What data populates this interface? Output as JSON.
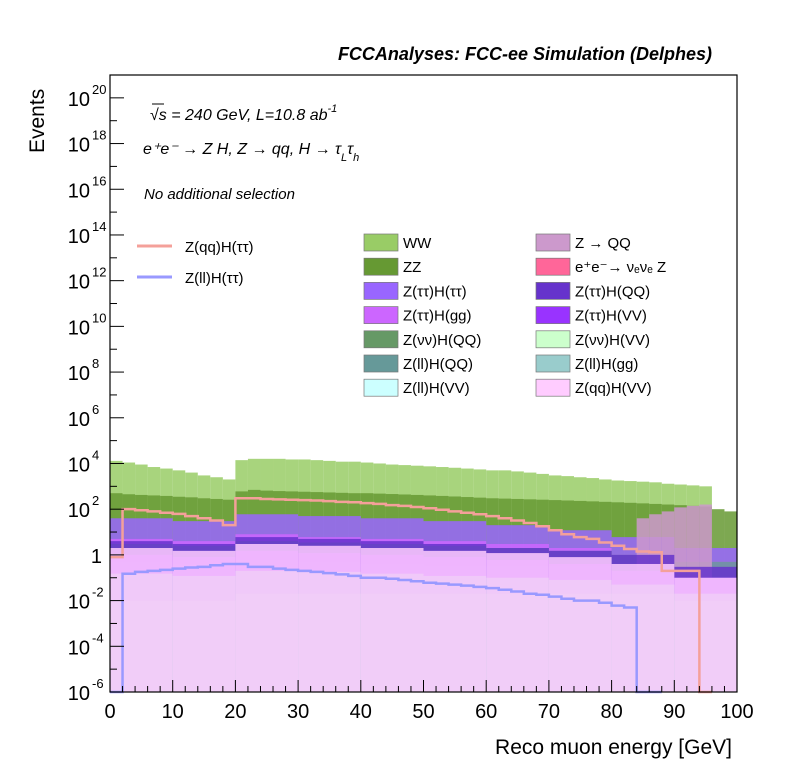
{
  "chart_data": {
    "type": "area",
    "title": "FCCAnalyses: FCC-ee Simulation (Delphes)",
    "xlabel": "Reco muon energy [GeV]",
    "ylabel": "Events",
    "xlim": [
      0,
      100
    ],
    "ylim": [
      1e-06,
      1e+21
    ],
    "yscale": "log",
    "grid": false,
    "legend_position": "top",
    "annotations": {
      "sqrt_s": "√s = 240 GeV, L=10.8 ab",
      "lumi_exp": "-1",
      "process": "e⁺e⁻ → Z H, Z → qq, H → τ",
      "process_sub1": "L",
      "process_tau": "τ",
      "process_sub2": "h",
      "selection": "No additional selection"
    },
    "x_ticks": [
      0,
      10,
      20,
      30,
      40,
      50,
      60,
      70,
      80,
      90,
      100
    ],
    "y_ticks": [
      {
        "value": 1e+20,
        "base": "10",
        "exp": "20"
      },
      {
        "value": 1e+18,
        "base": "10",
        "exp": "18"
      },
      {
        "value": 1e+16,
        "base": "10",
        "exp": "16"
      },
      {
        "value": 100000000000000.0,
        "base": "10",
        "exp": "14"
      },
      {
        "value": 1000000000000.0,
        "base": "10",
        "exp": "12"
      },
      {
        "value": 10000000000.0,
        "base": "10",
        "exp": "10"
      },
      {
        "value": 100000000.0,
        "base": "10",
        "exp": "8"
      },
      {
        "value": 1000000.0,
        "base": "10",
        "exp": "6"
      },
      {
        "value": 10000.0,
        "base": "10",
        "exp": "4"
      },
      {
        "value": 100.0,
        "base": "10",
        "exp": "2"
      },
      {
        "value": 1,
        "base": "1",
        "exp": ""
      },
      {
        "value": 0.01,
        "base": "10",
        "exp": "-2"
      },
      {
        "value": 0.0001,
        "base": "10",
        "exp": "-4"
      },
      {
        "value": 1e-06,
        "base": "10",
        "exp": "-6"
      }
    ],
    "signal_series": [
      {
        "name": "Z(qq)H(ττ)",
        "color": "#f4a09a",
        "x": [
          0,
          2,
          4,
          6,
          8,
          10,
          12,
          14,
          16,
          18,
          20,
          22,
          24,
          26,
          28,
          30,
          32,
          34,
          36,
          38,
          40,
          42,
          44,
          46,
          48,
          50,
          52,
          54,
          56,
          58,
          60,
          62,
          64,
          66,
          68,
          70,
          72,
          74,
          76,
          78,
          80,
          82,
          84,
          86,
          88,
          90,
          92,
          94
        ],
        "values": [
          0.8,
          100,
          90,
          80,
          70,
          62,
          50,
          40,
          32,
          20,
          300,
          300,
          280,
          270,
          260,
          250,
          240,
          225,
          210,
          200,
          185,
          170,
          150,
          140,
          125,
          110,
          95,
          80,
          70,
          60,
          50,
          40,
          32,
          25,
          18,
          12,
          8,
          6,
          5,
          3.5,
          2.5,
          1.8,
          1.4,
          1.3,
          0.2,
          0.2,
          0.2,
          1e-06
        ]
      },
      {
        "name": "Z(ll)H(ττ)",
        "color": "#9999ff",
        "x": [
          0,
          2,
          4,
          6,
          8,
          10,
          12,
          14,
          16,
          18,
          20,
          22,
          24,
          26,
          28,
          30,
          32,
          34,
          36,
          38,
          40,
          42,
          44,
          46,
          48,
          50,
          52,
          54,
          56,
          58,
          60,
          62,
          64,
          66,
          68,
          70,
          72,
          74,
          76,
          78,
          80,
          82,
          84,
          86
        ],
        "values": [
          1e-06,
          0.15,
          0.18,
          0.2,
          0.22,
          0.25,
          0.28,
          0.3,
          0.35,
          0.4,
          0.4,
          0.3,
          0.3,
          0.25,
          0.22,
          0.2,
          0.18,
          0.16,
          0.14,
          0.12,
          0.1,
          0.1,
          0.09,
          0.08,
          0.07,
          0.06,
          0.055,
          0.05,
          0.045,
          0.04,
          0.035,
          0.03,
          0.025,
          0.02,
          0.018,
          0.015,
          0.012,
          0.01,
          0.01,
          0.008,
          0.006,
          0.005,
          1e-06,
          1e-06
        ]
      }
    ],
    "stack_series": [
      {
        "name": "WW",
        "color": "#99cc66",
        "x": [
          0,
          2,
          4,
          6,
          8,
          10,
          12,
          14,
          16,
          18,
          20,
          22,
          24,
          26,
          28,
          30,
          32,
          34,
          36,
          38,
          40,
          42,
          44,
          46,
          48,
          50,
          52,
          54,
          56,
          58,
          60,
          62,
          64,
          66,
          68,
          70,
          72,
          74,
          76,
          78,
          80,
          82,
          84,
          86,
          88,
          90,
          92,
          94,
          96,
          98
        ],
        "values": [
          13000,
          11000,
          9000,
          7000,
          6000,
          5000,
          4000,
          3000,
          2500,
          2000,
          14000,
          16000,
          16000,
          16000,
          15000,
          15000,
          14000,
          13000,
          12000,
          12000,
          11000,
          10000,
          9000,
          8500,
          8000,
          7500,
          7000,
          6500,
          6000,
          5500,
          5000,
          5000,
          4500,
          4000,
          3500,
          3000,
          2800,
          2500,
          2300,
          2000,
          1800,
          1700,
          1600,
          1500,
          1300,
          1200,
          1100,
          1000,
          0,
          0
        ]
      },
      {
        "name": "ZZ",
        "color": "#669933",
        "x": [
          0,
          2,
          4,
          6,
          8,
          10,
          12,
          14,
          16,
          18,
          20,
          22,
          24,
          26,
          28,
          30,
          32,
          34,
          36,
          38,
          40,
          42,
          44,
          46,
          48,
          50,
          52,
          54,
          56,
          58,
          60,
          62,
          64,
          66,
          68,
          70,
          72,
          74,
          76,
          78,
          80,
          82,
          84,
          86,
          88,
          90,
          92,
          94,
          96,
          98
        ],
        "values": [
          500,
          450,
          420,
          400,
          380,
          350,
          330,
          300,
          280,
          260,
          600,
          700,
          650,
          620,
          600,
          580,
          560,
          540,
          520,
          500,
          500,
          480,
          460,
          440,
          420,
          400,
          380,
          360,
          340,
          320,
          300,
          290,
          280,
          270,
          260,
          250,
          240,
          230,
          220,
          210,
          200,
          190,
          180,
          170,
          160,
          150,
          140,
          130,
          100,
          80
        ]
      },
      {
        "name": "Z(ττ)H(ττ)",
        "color": "#9966ff",
        "x": [
          0,
          10,
          20,
          30,
          40,
          50,
          60,
          70,
          80,
          90
        ],
        "values": [
          40,
          30,
          60,
          50,
          40,
          30,
          20,
          12,
          6,
          2
        ]
      },
      {
        "name": "Z(ττ)H(gg)",
        "color": "#cc66ff",
        "x": [
          0,
          10,
          20,
          30,
          40,
          50,
          60,
          70,
          80,
          90
        ],
        "values": [
          5,
          4,
          8,
          6,
          5,
          4,
          3,
          2,
          1,
          0.5
        ]
      },
      {
        "name": "Z(νν)H(QQ)",
        "color": "#669966",
        "x": [
          0,
          10,
          20,
          30,
          40,
          50,
          60,
          70,
          80,
          90
        ],
        "values": [
          0.5,
          0.4,
          0.6,
          0.5,
          0.4,
          0.3,
          0.3,
          0.2,
          0.1,
          0.05
        ]
      },
      {
        "name": "Z(ll)H(QQ)",
        "color": "#669999",
        "x": [
          0,
          10,
          20,
          30,
          40,
          50,
          60,
          70,
          80,
          90
        ],
        "values": [
          3,
          2.5,
          4,
          3.5,
          3,
          2.5,
          2,
          1.5,
          1,
          0.5
        ]
      },
      {
        "name": "Z(ll)H(VV)",
        "color": "#ccffff",
        "x": [
          0,
          10,
          20,
          30,
          40,
          50,
          60,
          70,
          80,
          90
        ],
        "values": [
          0.3,
          0.3,
          0.4,
          0.4,
          0.4,
          0.3,
          0.3,
          0.3,
          0.2,
          0.1
        ]
      },
      {
        "name": "Z → QQ",
        "color": "#cc99cc",
        "x": [
          80,
          82,
          84,
          86,
          88,
          90,
          92,
          94,
          96,
          98
        ],
        "values": [
          0,
          0,
          40,
          60,
          80,
          120,
          140,
          160,
          0,
          0
        ]
      },
      {
        "name": "e⁺e⁻→ ν_eν_e Z",
        "color": "#ff6699",
        "x": [
          2,
          4,
          6,
          8,
          10,
          12,
          14,
          16,
          18,
          20,
          22,
          24
        ],
        "values": [
          0.1,
          0.1,
          0.05,
          0.08,
          0.05,
          0.05,
          0.1,
          0.04,
          0.08,
          0.15,
          0.15,
          0.1
        ]
      },
      {
        "name": "Z(ττ)H(QQ)",
        "color": "#6633cc",
        "x": [
          0,
          10,
          20,
          30,
          40,
          50,
          60,
          70,
          80,
          90
        ],
        "values": [
          4,
          3,
          6,
          5,
          4,
          3,
          2,
          1.5,
          1,
          0.3
        ]
      },
      {
        "name": "Z(ττ)H(VV)",
        "color": "#9933ff",
        "x": [
          0,
          10,
          20,
          30,
          40,
          50,
          60,
          70,
          80,
          90
        ],
        "values": [
          1,
          0.8,
          1.5,
          1.2,
          1,
          0.8,
          0.6,
          0.4,
          0.2,
          0.1
        ]
      },
      {
        "name": "Z(νν)H(VV)",
        "color": "#ccffcc",
        "x": [
          0,
          10,
          20,
          30,
          40,
          50,
          60,
          70,
          80,
          90
        ],
        "values": [
          0.01,
          0.01,
          0.02,
          0.02,
          0.02,
          0.02,
          0.02,
          0.02,
          0.02,
          0.01
        ]
      },
      {
        "name": "Z(ll)H(gg)",
        "color": "#99cccc",
        "x": [
          0,
          10,
          20,
          30,
          40,
          50,
          60,
          70,
          80,
          90
        ],
        "values": [
          0.15,
          0.12,
          0.2,
          0.18,
          0.15,
          0.12,
          0.1,
          0.08,
          0.05,
          0.02
        ]
      },
      {
        "name": "Z(qq)H(VV)",
        "color": "#ffccff",
        "x": [
          0,
          10,
          20,
          30,
          40,
          50,
          60,
          70,
          80,
          90
        ],
        "values": [
          2,
          1.5,
          3,
          2.5,
          2,
          1.5,
          1.2,
          0.8,
          0.4,
          0.1
        ]
      }
    ]
  },
  "legend": {
    "signals": [
      {
        "label": "Z(qq)H(ττ)",
        "color": "#f4a09a"
      },
      {
        "label": "Z(ll)H(ττ)",
        "color": "#9999ff"
      }
    ],
    "col1": [
      {
        "label": "WW",
        "color": "#99cc66"
      },
      {
        "label": "ZZ",
        "color": "#669933"
      },
      {
        "label": "Z(ττ)H(ττ)",
        "color": "#9966ff"
      },
      {
        "label": "Z(ττ)H(gg)",
        "color": "#cc66ff"
      },
      {
        "label": "Z(νν)H(QQ)",
        "color": "#669966"
      },
      {
        "label": "Z(ll)H(QQ)",
        "color": "#669999"
      },
      {
        "label": "Z(ll)H(VV)",
        "color": "#ccffff"
      }
    ],
    "col2": [
      {
        "label": "Z → QQ",
        "color": "#cc99cc"
      },
      {
        "label": "e⁺e⁻→ νₑνₑ Z",
        "color": "#ff6699"
      },
      {
        "label": "Z(ττ)H(QQ)",
        "color": "#6633cc"
      },
      {
        "label": "Z(ττ)H(VV)",
        "color": "#9933ff"
      },
      {
        "label": "Z(νν)H(VV)",
        "color": "#ccffcc"
      },
      {
        "label": "Z(ll)H(gg)",
        "color": "#99cccc"
      },
      {
        "label": "Z(qq)H(VV)",
        "color": "#ffccff"
      }
    ]
  }
}
